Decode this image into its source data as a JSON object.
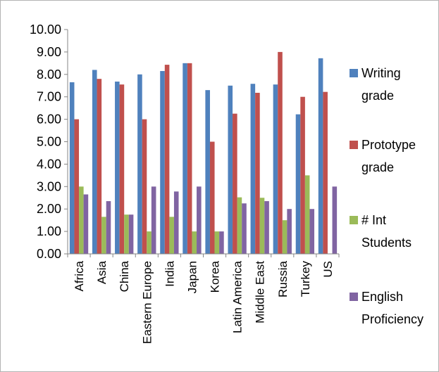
{
  "chart_data": {
    "type": "bar",
    "categories": [
      "Africa",
      "Asia",
      "China",
      "Eastern Europe",
      "India",
      "Japan",
      "Korea",
      "Latin America",
      "Middle East",
      "Russia",
      "Turkey",
      "US"
    ],
    "series": [
      {
        "name_lines": [
          "Writing",
          "grade"
        ],
        "color": "#4f81bd",
        "values": [
          7.65,
          8.2,
          7.68,
          8.0,
          8.15,
          8.5,
          7.3,
          7.5,
          7.58,
          7.55,
          6.22,
          8.72
        ]
      },
      {
        "name_lines": [
          "Prototype",
          "grade"
        ],
        "color": "#c0504d",
        "values": [
          6.0,
          7.8,
          7.55,
          6.0,
          8.43,
          8.5,
          5.0,
          6.25,
          7.18,
          9.0,
          7.0,
          7.22
        ]
      },
      {
        "name_lines": [
          "# Int",
          "Students"
        ],
        "color": "#9bbb59",
        "values": [
          3.0,
          1.65,
          1.75,
          1.0,
          1.65,
          1.0,
          1.0,
          2.52,
          2.5,
          1.5,
          3.5,
          0
        ]
      },
      {
        "name_lines": [
          "English",
          "Proficiency"
        ],
        "color": "#8064a2",
        "values": [
          2.65,
          2.35,
          1.75,
          3.0,
          2.78,
          3.0,
          1.0,
          2.25,
          2.35,
          2.0,
          2.0,
          3.0
        ]
      }
    ],
    "ylim": [
      0,
      10
    ],
    "yticks": [
      "0.00",
      "1.00",
      "2.00",
      "3.00",
      "4.00",
      "5.00",
      "6.00",
      "7.00",
      "8.00",
      "9.00",
      "10.00"
    ],
    "title": "",
    "xlabel": "",
    "ylabel": "",
    "grid": false,
    "legend_position": "right"
  }
}
